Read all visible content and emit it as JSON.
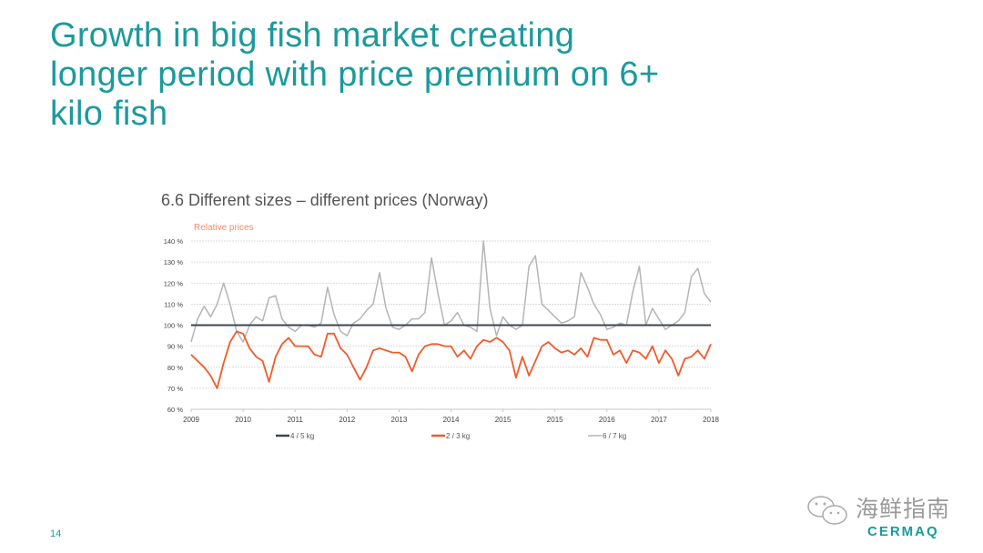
{
  "slide": {
    "title_lines": [
      "Growth in big fish market creating",
      "longer period with price premium on 6+",
      "kilo fish"
    ],
    "page_number": "14",
    "watermark": {
      "text": "海鲜指南",
      "brand": "CERMAQ",
      "icon": "wechat-icon"
    }
  },
  "colors": {
    "title": "#1b9a9c",
    "series_45": "#3b4650",
    "series_23": "#f15a2b",
    "series_67": "#b5b5b5"
  },
  "chart_data": {
    "type": "line",
    "title": "6.6  Different sizes – different prices (Norway)",
    "subtitle": "Relative prices",
    "ylabel": "",
    "xlabel": "",
    "ylim": [
      60,
      140
    ],
    "yticks": [
      "140 %",
      "130 %",
      "120 %",
      "110 %",
      "100 %",
      "90 %",
      "80 %",
      "70 %",
      "60 %"
    ],
    "ytick_values": [
      140,
      130,
      120,
      110,
      100,
      90,
      80,
      70,
      60
    ],
    "xtick_labels": [
      "2009",
      "2010",
      "2011",
      "2012",
      "2013",
      "2014",
      "2015",
      "2015",
      "2016",
      "2017",
      "2018"
    ],
    "points_per_interval": 8,
    "grid": true,
    "legend_position": "bottom",
    "series": [
      {
        "name": "4 / 5 kg",
        "values": [
          100,
          100
        ]
      },
      {
        "name": "2 / 3 kg",
        "values": [
          86,
          83,
          80,
          76,
          70,
          82,
          92,
          97,
          96,
          89,
          85,
          83,
          73,
          85,
          91,
          94,
          90,
          90,
          90,
          86,
          85,
          96,
          96,
          89,
          86,
          80,
          74,
          80,
          88,
          89,
          88,
          87,
          87,
          85,
          78,
          86,
          90,
          91,
          91,
          90,
          90,
          85,
          88,
          84,
          90,
          93,
          92,
          94,
          92,
          88,
          75,
          85,
          76,
          83,
          90,
          92,
          89,
          87,
          88,
          86,
          89,
          85,
          94,
          93,
          93,
          86,
          88,
          82,
          88,
          87,
          84,
          90,
          82,
          88,
          84,
          76,
          84,
          85,
          88,
          84,
          91
        ]
      },
      {
        "name": "6 / 7 kg",
        "values": [
          92,
          103,
          109,
          104,
          110,
          120,
          110,
          97,
          92,
          100,
          104,
          102,
          113,
          114,
          103,
          99,
          97,
          100,
          100,
          99,
          101,
          118,
          105,
          97,
          95,
          101,
          103,
          107,
          110,
          125,
          108,
          99,
          98,
          100,
          103,
          103,
          106,
          132,
          115,
          100,
          102,
          106,
          100,
          99,
          97,
          140,
          108,
          95,
          104,
          100,
          98,
          100,
          128,
          133,
          110,
          107,
          104,
          101,
          102,
          104,
          125,
          118,
          110,
          105,
          98,
          99,
          101,
          100,
          116,
          128,
          100,
          108,
          103,
          98,
          100,
          102,
          106,
          123,
          127,
          115,
          111
        ]
      }
    ]
  }
}
